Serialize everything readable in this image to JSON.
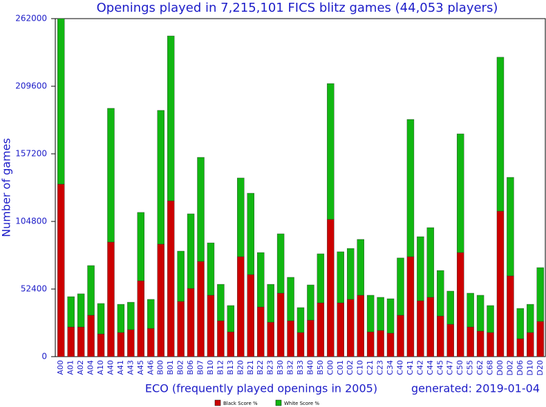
{
  "chart_data": {
    "type": "stacked_bar",
    "title": "Openings played in 7,215,101 FICS blitz games (44,053 players)",
    "x_label": "ECO (frequently played openings in 2005)",
    "y_label": "Number of games",
    "annotation": "generated: 2019-01-04",
    "categories": [
      "A00",
      "A01",
      "A02",
      "A04",
      "A10",
      "A40",
      "A41",
      "A43",
      "A45",
      "A46",
      "B00",
      "B01",
      "B02",
      "B06",
      "B07",
      "B10",
      "B12",
      "B13",
      "B20",
      "B21",
      "B22",
      "B23",
      "B30",
      "B32",
      "B33",
      "B40",
      "B50",
      "C00",
      "C01",
      "C02",
      "C10",
      "C21",
      "C23",
      "C34",
      "C40",
      "C41",
      "C42",
      "C44",
      "C45",
      "C47",
      "C50",
      "C55",
      "C62",
      "C68",
      "D00",
      "D02",
      "D06",
      "D10",
      "D20"
    ],
    "series": [
      {
        "name": "Black Score %",
        "color": "#cc0000",
        "values": [
          133700,
          23000,
          23000,
          32100,
          17600,
          88800,
          18700,
          20900,
          58800,
          21900,
          87200,
          120800,
          42800,
          52900,
          73800,
          47600,
          27800,
          19200,
          77500,
          63600,
          38500,
          26700,
          49200,
          27800,
          18700,
          28300,
          41700,
          106400,
          41700,
          44400,
          47600,
          19200,
          20300,
          18200,
          32100,
          77500,
          43300,
          46000,
          31500,
          25100,
          80700,
          23000,
          19800,
          18700,
          112800,
          62600,
          13900,
          18700,
          27300
        ]
      },
      {
        "name": "White Score %",
        "color": "#11b711",
        "values": [
          128300,
          23500,
          25700,
          38500,
          23600,
          103700,
          21900,
          21300,
          53000,
          22500,
          103700,
          127800,
          39000,
          57800,
          80700,
          40600,
          28300,
          20400,
          61000,
          63100,
          42200,
          29400,
          46000,
          33700,
          19300,
          27300,
          38000,
          105300,
          39600,
          39500,
          43300,
          28400,
          25700,
          26700,
          44400,
          106400,
          49700,
          54000,
          35300,
          25700,
          92000,
          26200,
          27800,
          20900,
          119300,
          76400,
          23500,
          21900,
          41700
        ]
      }
    ],
    "ylim": [
      0,
      262000
    ],
    "yticks": [
      0,
      52400,
      104800,
      157200,
      209600,
      262000
    ],
    "grid": false
  }
}
